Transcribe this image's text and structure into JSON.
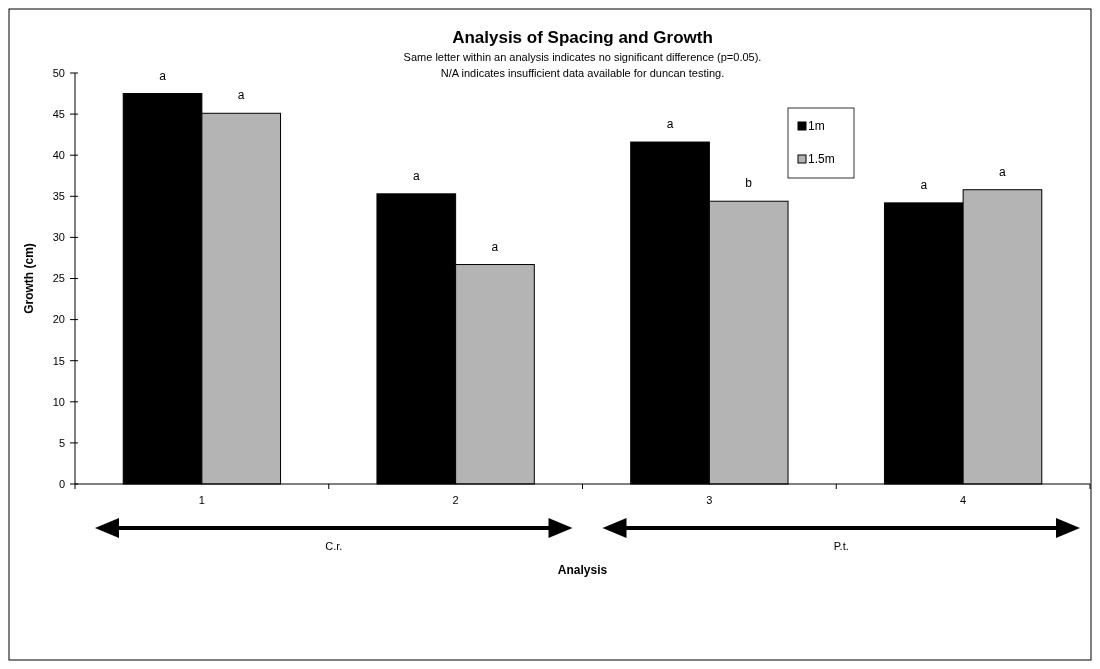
{
  "chart_data": {
    "type": "bar",
    "title": "Analysis of Spacing and Growth",
    "subtitle": "Same letter within an analysis indicates no significant difference (p=0.05).\nN/A indicates insufficient data available for duncan testing.",
    "xlabel": "Analysis",
    "ylabel": "Growth (cm)",
    "categories": [
      "1",
      "2",
      "3",
      "4"
    ],
    "series": [
      {
        "name": "1m",
        "color": "#000000",
        "values": [
          47.5,
          35.3,
          41.6,
          34.2
        ],
        "value_labels": [
          "a",
          "a",
          "a",
          "a"
        ]
      },
      {
        "name": "1.5m",
        "color": "#b4b4b4",
        "values": [
          45.1,
          26.7,
          34.4,
          35.8
        ],
        "value_labels": [
          "a",
          "a",
          "b",
          "a"
        ]
      }
    ],
    "ylim": [
      0,
      50
    ],
    "yticks": [
      0,
      5,
      10,
      15,
      20,
      25,
      30,
      35,
      40,
      45,
      50
    ],
    "grid": false,
    "legend": "top right",
    "annotations": [
      "C.r.",
      "P.t."
    ]
  }
}
